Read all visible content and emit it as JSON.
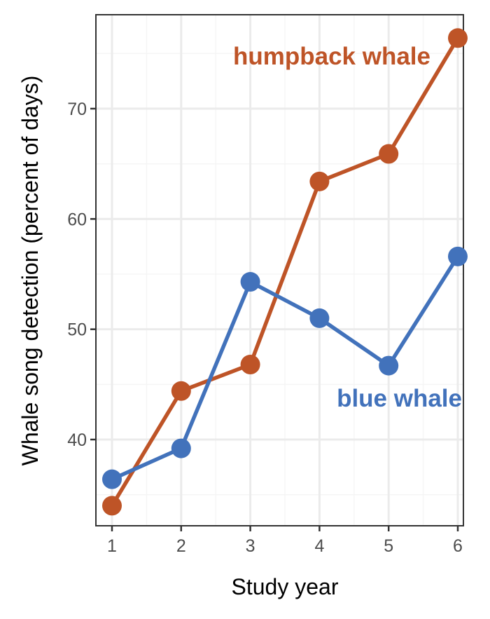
{
  "chart_data": {
    "type": "line",
    "title": "",
    "xlabel": "Study year",
    "ylabel": "Whale song detection (percent of days)",
    "x": [
      1,
      2,
      3,
      4,
      5,
      6
    ],
    "xlim": [
      0.77,
      6.08
    ],
    "ylim": [
      32.2,
      78.5
    ],
    "x_ticks": [
      "1",
      "2",
      "3",
      "4",
      "5",
      "6"
    ],
    "y_ticks": [
      "40",
      "50",
      "60",
      "70"
    ],
    "grid": true,
    "legend_position": "direct labels",
    "series": [
      {
        "name": "humpback whale",
        "color": "#BE5427",
        "values": [
          34.0,
          44.4,
          46.8,
          63.4,
          65.9,
          76.4
        ]
      },
      {
        "name": "blue whale",
        "color": "#4272BB",
        "values": [
          36.4,
          39.2,
          54.3,
          51.0,
          46.7,
          56.6
        ]
      }
    ],
    "annotations": [
      {
        "text": "humpback whale",
        "color": "#BE5427",
        "position": "top right"
      },
      {
        "text": "blue whale",
        "color": "#4272BB",
        "position": "right, below blue line"
      }
    ]
  }
}
